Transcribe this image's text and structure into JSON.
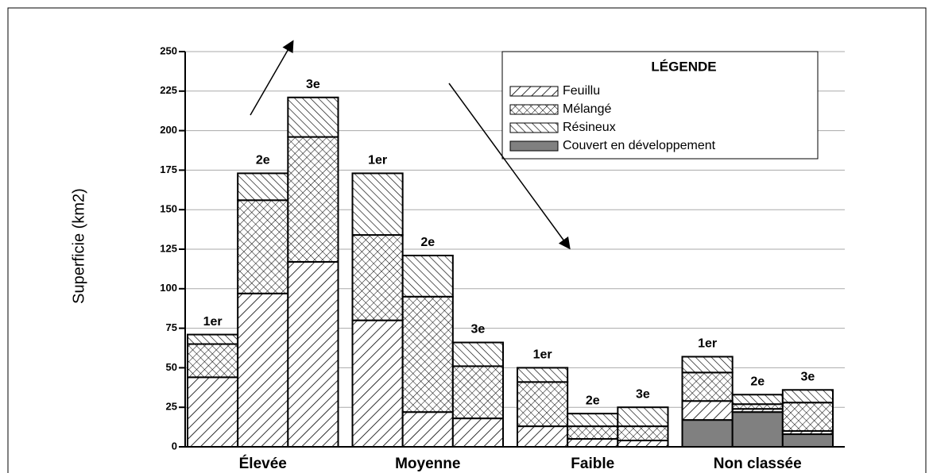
{
  "chart_data": {
    "type": "stacked-bar",
    "ylabel": "Superficie (km2)",
    "groups": [
      "Élevée",
      "Moyenne",
      "Faible",
      "Non classée"
    ],
    "categories": [
      "1er",
      "2e",
      "3e",
      "1er",
      "2e",
      "3e",
      "1er",
      "2e",
      "3e",
      "1er",
      "2e",
      "3e"
    ],
    "series": [
      {
        "name": "Feuillu",
        "hatch": "backward",
        "color": "#000000",
        "values": [
          44,
          97,
          117,
          80,
          22,
          18,
          13,
          5,
          4,
          12,
          2,
          2
        ]
      },
      {
        "name": "Mélangé",
        "hatch": "cross",
        "color": "#000000",
        "values": [
          21,
          59,
          79,
          54,
          73,
          33,
          28,
          8,
          9,
          18,
          3,
          18
        ]
      },
      {
        "name": "Résineux",
        "hatch": "forward",
        "color": "#000000",
        "values": [
          6,
          17,
          25,
          39,
          26,
          15,
          9,
          8,
          12,
          10,
          6,
          8
        ]
      },
      {
        "name": "Couvert en développement",
        "hatch": "solid",
        "color": "#808080",
        "values": [
          0,
          0,
          0,
          0,
          0,
          0,
          0,
          0,
          0,
          17,
          22,
          8
        ]
      }
    ],
    "legend_title": "LÉGENDE",
    "legend": "upper right",
    "ylim": [
      0,
      250
    ],
    "yticks": [
      0,
      25,
      50,
      75,
      100,
      125,
      150,
      175,
      200,
      225,
      250
    ],
    "grid": true
  }
}
